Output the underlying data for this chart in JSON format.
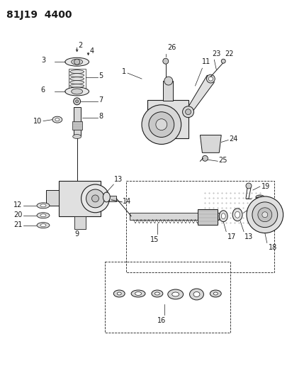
{
  "title": "81J19  4400",
  "bg_color": "#ffffff",
  "line_color": "#1a1a1a",
  "label_fontsize": 7,
  "fig_width": 4.06,
  "fig_height": 5.33,
  "dpi": 100,
  "title_fontsize": 10,
  "title_fontweight": "bold"
}
